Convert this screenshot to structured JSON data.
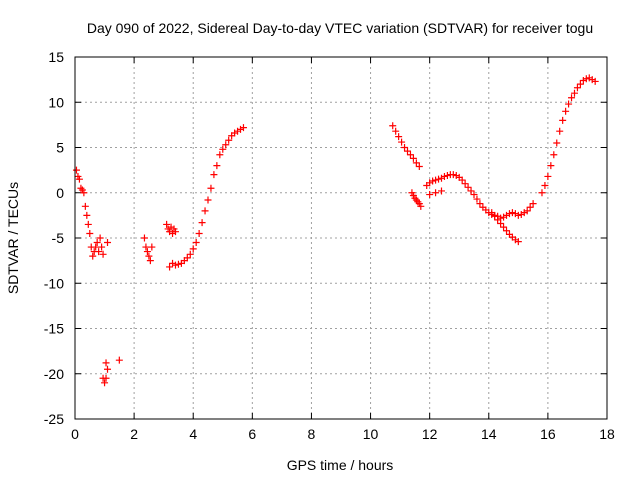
{
  "chart_data": {
    "type": "scatter",
    "title": "Day 090 of 2022, Sidereal Day-to-day VTEC variation (SDTVAR) for receiver togu",
    "xlabel": "GPS time / hours",
    "ylabel": "SDTVAR / TECUs",
    "xlim": [
      0,
      18
    ],
    "ylim": [
      -25,
      15
    ],
    "xticks": [
      0,
      2,
      4,
      6,
      8,
      10,
      12,
      14,
      16,
      18
    ],
    "yticks": [
      -25,
      -20,
      -15,
      -10,
      -5,
      0,
      5,
      10,
      15
    ],
    "grid": true,
    "marker": "+",
    "marker_color": "#ff0000",
    "series": [
      {
        "name": "SDTVAR",
        "segments": [
          {
            "x": [
              0.05,
              0.1,
              0.15,
              0.2,
              0.25,
              0.3,
              0.35,
              0.4,
              0.45,
              0.5,
              0.55,
              0.6,
              0.65,
              0.7,
              0.75,
              0.8,
              0.85,
              0.9,
              0.95,
              1.1
            ],
            "y": [
              2.5,
              1.8,
              1.5,
              0.5,
              0.3,
              0.0,
              -1.5,
              -2.5,
              -3.5,
              -4.5,
              -6.0,
              -7.0,
              -6.5,
              -6.0,
              -5.5,
              -6.5,
              -5.0,
              -6.0,
              -6.8,
              -5.5
            ]
          },
          {
            "x": [
              0.95,
              1.0,
              1.05,
              1.1,
              1.05,
              1.5
            ],
            "y": [
              -20.5,
              -21.0,
              -20.5,
              -19.5,
              -18.8,
              -18.5
            ]
          },
          {
            "x": [
              2.35,
              2.4,
              2.45,
              2.5,
              2.55,
              2.6
            ],
            "y": [
              -5.0,
              -6.0,
              -6.5,
              -7.0,
              -7.5,
              -6.0
            ]
          },
          {
            "x": [
              3.1,
              3.15,
              3.2,
              3.25,
              3.3,
              3.35,
              3.4
            ],
            "y": [
              -3.5,
              -4.0,
              -4.3,
              -3.8,
              -4.5,
              -4.0,
              -4.3
            ]
          },
          {
            "x": [
              3.2,
              3.3,
              3.4,
              3.5,
              3.6,
              3.7,
              3.8,
              3.9,
              4.0,
              4.1,
              4.2,
              4.3,
              4.4,
              4.5,
              4.6,
              4.7,
              4.8,
              4.9,
              5.0,
              5.1,
              5.2,
              5.3,
              5.4,
              5.5,
              5.6,
              5.7
            ],
            "y": [
              -8.2,
              -7.8,
              -8.0,
              -7.9,
              -7.8,
              -7.5,
              -7.2,
              -6.8,
              -6.2,
              -5.5,
              -4.5,
              -3.3,
              -2.0,
              -0.8,
              0.5,
              2.0,
              3.0,
              4.2,
              4.8,
              5.3,
              5.8,
              6.3,
              6.6,
              6.8,
              7.0,
              7.2
            ]
          },
          {
            "x": [
              10.75,
              10.85,
              10.95,
              11.05,
              11.15,
              11.25,
              11.35,
              11.45,
              11.55,
              11.65
            ],
            "y": [
              7.4,
              6.8,
              6.2,
              5.6,
              5.0,
              4.6,
              4.2,
              3.8,
              3.3,
              2.9
            ]
          },
          {
            "x": [
              11.4,
              11.45,
              11.5,
              11.55,
              11.6,
              11.65,
              11.7
            ],
            "y": [
              0.0,
              -0.3,
              -0.6,
              -0.8,
              -1.0,
              -1.2,
              -1.5
            ]
          },
          {
            "x": [
              11.9,
              12.0,
              12.1,
              12.2,
              12.3,
              12.4,
              12.5,
              12.6,
              12.7,
              12.8,
              12.9,
              13.0,
              13.1,
              13.2,
              13.3,
              13.4,
              13.5,
              13.6,
              13.7,
              13.8,
              13.9,
              14.0,
              14.1,
              14.2,
              14.3,
              14.4,
              14.5,
              14.6,
              14.7,
              14.8,
              14.9,
              15.0,
              15.1,
              15.2,
              15.3,
              15.4,
              15.5
            ],
            "y": [
              0.8,
              1.1,
              1.3,
              1.4,
              1.5,
              1.6,
              1.8,
              1.9,
              2.0,
              2.0,
              1.9,
              1.7,
              1.4,
              1.0,
              0.6,
              0.2,
              -0.2,
              -0.7,
              -1.2,
              -1.6,
              -1.9,
              -2.2,
              -2.4,
              -2.5,
              -2.6,
              -2.8,
              -2.7,
              -2.5,
              -2.3,
              -2.2,
              -2.3,
              -2.5,
              -2.4,
              -2.2,
              -2.0,
              -1.6,
              -1.2
            ]
          },
          {
            "x": [
              12.0,
              12.2,
              12.4
            ],
            "y": [
              -0.2,
              0.0,
              0.2
            ]
          },
          {
            "x": [
              14.1,
              14.2,
              14.3,
              14.4,
              14.5,
              14.6,
              14.7,
              14.8,
              14.9,
              15.0
            ],
            "y": [
              -2.2,
              -2.6,
              -3.0,
              -3.4,
              -3.8,
              -4.2,
              -4.6,
              -4.9,
              -5.2,
              -5.4
            ]
          },
          {
            "x": [
              15.8,
              15.9,
              16.0,
              16.1,
              16.2,
              16.3,
              16.4,
              16.5,
              16.6,
              16.7,
              16.8,
              16.9,
              17.0,
              17.1,
              17.2,
              17.3,
              17.4,
              17.5,
              17.6
            ],
            "y": [
              0.0,
              0.8,
              1.8,
              3.0,
              4.2,
              5.5,
              6.8,
              8.0,
              9.0,
              9.8,
              10.5,
              11.0,
              11.6,
              12.0,
              12.4,
              12.6,
              12.7,
              12.5,
              12.3
            ]
          }
        ]
      }
    ]
  }
}
